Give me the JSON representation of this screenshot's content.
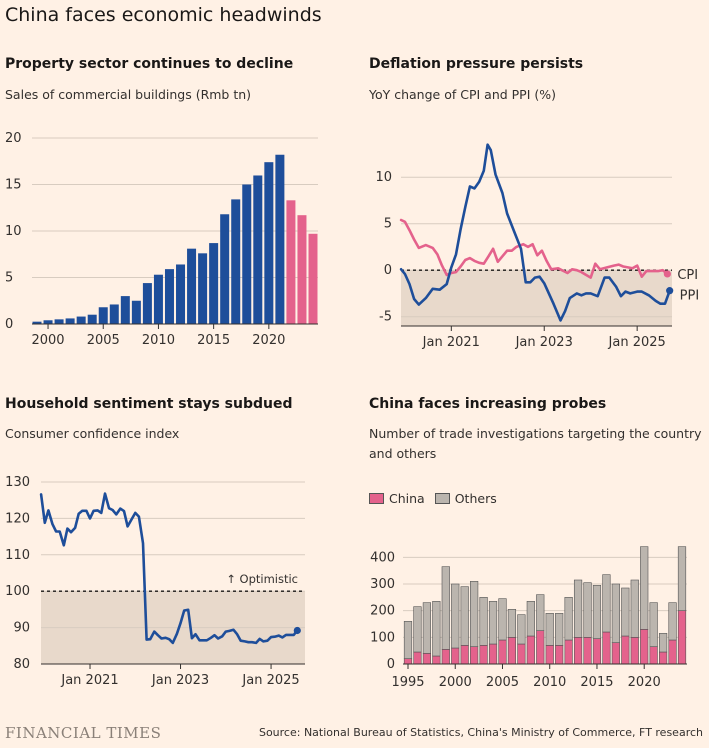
{
  "header": {
    "title": "China faces economic headwinds"
  },
  "footer": {
    "brand": "FINANCIAL TIMES",
    "source": "Source: National Bureau of Statistics, China's Ministry of Commerce, FT research"
  },
  "colors": {
    "blue": "#1e4e9a",
    "pink": "#e4628c",
    "grey": "#bbb5ae",
    "band": "#e8d9cb"
  },
  "chart_data": [
    {
      "id": "property",
      "type": "bar",
      "title": "Property sector continues to decline",
      "subtitle": "Sales of commercial buildings (Rmb tn)",
      "x": [
        1999,
        2000,
        2001,
        2002,
        2003,
        2004,
        2005,
        2006,
        2007,
        2008,
        2009,
        2010,
        2011,
        2012,
        2013,
        2014,
        2015,
        2016,
        2017,
        2018,
        2019,
        2020,
        2021,
        2022,
        2023,
        2024
      ],
      "values": [
        0.25,
        0.4,
        0.5,
        0.6,
        0.8,
        1.0,
        1.8,
        2.1,
        3.0,
        2.5,
        4.4,
        5.3,
        5.9,
        6.4,
        8.1,
        7.6,
        8.7,
        11.8,
        13.4,
        15.0,
        15.97,
        17.4,
        18.2,
        13.3,
        11.7,
        9.7
      ],
      "highlight_from": 2022,
      "ylim": [
        0,
        20
      ],
      "yticks": [
        0,
        5,
        10,
        15,
        20
      ],
      "xticks": [
        2000,
        2005,
        2010,
        2015,
        2020
      ]
    },
    {
      "id": "deflation",
      "type": "line",
      "title": "Deflation pressure persists",
      "subtitle": "YoY change of CPI and PPI (%)",
      "ylim": [
        -6,
        14
      ],
      "yticks": [
        10,
        5,
        0,
        -5
      ],
      "xtick_labels": [
        "Jan 2021",
        "Jan 2023",
        "Jan 2025"
      ],
      "xtick_pos": [
        2021,
        2023,
        2025
      ],
      "xlim": [
        2019.917,
        2025.75
      ],
      "series": [
        {
          "name": "CPI",
          "points": [
            [
              2019.92,
              5.4
            ],
            [
              2020.0,
              5.2
            ],
            [
              2020.1,
              4.3
            ],
            [
              2020.2,
              3.3
            ],
            [
              2020.3,
              2.4
            ],
            [
              2020.45,
              2.7
            ],
            [
              2020.6,
              2.4
            ],
            [
              2020.7,
              1.7
            ],
            [
              2020.8,
              0.5
            ],
            [
              2020.9,
              -0.5
            ],
            [
              2021.0,
              -0.3
            ],
            [
              2021.1,
              -0.2
            ],
            [
              2021.2,
              0.4
            ],
            [
              2021.3,
              1.1
            ],
            [
              2021.4,
              1.3
            ],
            [
              2021.5,
              1.0
            ],
            [
              2021.6,
              0.8
            ],
            [
              2021.7,
              0.7
            ],
            [
              2021.8,
              1.5
            ],
            [
              2021.9,
              2.3
            ],
            [
              2022.0,
              0.9
            ],
            [
              2022.1,
              1.5
            ],
            [
              2022.2,
              2.1
            ],
            [
              2022.3,
              2.1
            ],
            [
              2022.4,
              2.5
            ],
            [
              2022.55,
              2.8
            ],
            [
              2022.65,
              2.5
            ],
            [
              2022.75,
              2.8
            ],
            [
              2022.85,
              1.6
            ],
            [
              2022.95,
              2.1
            ],
            [
              2023.05,
              1.0
            ],
            [
              2023.15,
              0.1
            ],
            [
              2023.3,
              0.2
            ],
            [
              2023.5,
              -0.3
            ],
            [
              2023.6,
              0.1
            ],
            [
              2023.7,
              0.0
            ],
            [
              2023.8,
              -0.2
            ],
            [
              2023.9,
              -0.5
            ],
            [
              2024.0,
              -0.8
            ],
            [
              2024.1,
              0.7
            ],
            [
              2024.2,
              0.1
            ],
            [
              2024.35,
              0.3
            ],
            [
              2024.5,
              0.5
            ],
            [
              2024.6,
              0.6
            ],
            [
              2024.7,
              0.4
            ],
            [
              2024.8,
              0.3
            ],
            [
              2024.9,
              0.2
            ],
            [
              2025.0,
              0.5
            ],
            [
              2025.1,
              -0.7
            ],
            [
              2025.2,
              -0.1
            ],
            [
              2025.3,
              -0.1
            ],
            [
              2025.45,
              -0.1
            ],
            [
              2025.55,
              0.0
            ],
            [
              2025.65,
              -0.4
            ]
          ]
        },
        {
          "name": "PPI",
          "points": [
            [
              2019.92,
              0.1
            ],
            [
              2020.0,
              -0.4
            ],
            [
              2020.1,
              -1.5
            ],
            [
              2020.2,
              -3.1
            ],
            [
              2020.3,
              -3.7
            ],
            [
              2020.45,
              -3.0
            ],
            [
              2020.6,
              -2.0
            ],
            [
              2020.75,
              -2.1
            ],
            [
              2020.9,
              -1.5
            ],
            [
              2021.0,
              0.3
            ],
            [
              2021.1,
              1.7
            ],
            [
              2021.2,
              4.4
            ],
            [
              2021.3,
              6.8
            ],
            [
              2021.4,
              9.0
            ],
            [
              2021.5,
              8.8
            ],
            [
              2021.6,
              9.5
            ],
            [
              2021.7,
              10.7
            ],
            [
              2021.78,
              13.5
            ],
            [
              2021.85,
              12.9
            ],
            [
              2021.95,
              10.3
            ],
            [
              2022.1,
              8.3
            ],
            [
              2022.2,
              6.1
            ],
            [
              2022.35,
              4.2
            ],
            [
              2022.5,
              2.3
            ],
            [
              2022.6,
              -1.3
            ],
            [
              2022.7,
              -1.3
            ],
            [
              2022.8,
              -0.8
            ],
            [
              2022.9,
              -0.7
            ],
            [
              2023.0,
              -1.4
            ],
            [
              2023.2,
              -3.6
            ],
            [
              2023.35,
              -5.4
            ],
            [
              2023.45,
              -4.4
            ],
            [
              2023.55,
              -3.0
            ],
            [
              2023.7,
              -2.5
            ],
            [
              2023.8,
              -2.7
            ],
            [
              2023.9,
              -2.5
            ],
            [
              2024.0,
              -2.5
            ],
            [
              2024.15,
              -2.8
            ],
            [
              2024.3,
              -0.8
            ],
            [
              2024.4,
              -0.8
            ],
            [
              2024.55,
              -1.8
            ],
            [
              2024.65,
              -2.8
            ],
            [
              2024.75,
              -2.3
            ],
            [
              2024.85,
              -2.5
            ],
            [
              2025.0,
              -2.3
            ],
            [
              2025.1,
              -2.3
            ],
            [
              2025.25,
              -2.7
            ],
            [
              2025.4,
              -3.3
            ],
            [
              2025.5,
              -3.6
            ],
            [
              2025.6,
              -3.6
            ],
            [
              2025.7,
              -2.2
            ]
          ]
        }
      ]
    },
    {
      "id": "sentiment",
      "type": "line",
      "title": "Household sentiment stays subdued",
      "subtitle": "Consumer confidence index",
      "ylim": [
        80,
        130
      ],
      "yticks": [
        130,
        120,
        110,
        100,
        90,
        80
      ],
      "xtick_labels": [
        "Jan 2021",
        "Jan 2023",
        "Jan 2025"
      ],
      "xtick_pos": [
        2021,
        2023,
        2025
      ],
      "xlim": [
        2019.917,
        2025.75
      ],
      "reference": {
        "value": 100,
        "label": "↑ Optimistic"
      },
      "series": [
        {
          "name": "Consumer confidence",
          "points": [
            [
              2019.92,
              126.6
            ],
            [
              2020.0,
              118.8
            ],
            [
              2020.08,
              122.2
            ],
            [
              2020.17,
              118.4
            ],
            [
              2020.25,
              116.4
            ],
            [
              2020.33,
              116.4
            ],
            [
              2020.42,
              112.6
            ],
            [
              2020.5,
              117.2
            ],
            [
              2020.58,
              116.2
            ],
            [
              2020.67,
              117.4
            ],
            [
              2020.75,
              121.3
            ],
            [
              2020.83,
              122.1
            ],
            [
              2020.92,
              122.1
            ],
            [
              2021.0,
              120.0
            ],
            [
              2021.08,
              122.1
            ],
            [
              2021.17,
              122.2
            ],
            [
              2021.25,
              121.5
            ],
            [
              2021.33,
              126.8
            ],
            [
              2021.42,
              122.8
            ],
            [
              2021.5,
              122.3
            ],
            [
              2021.58,
              121.1
            ],
            [
              2021.67,
              122.7
            ],
            [
              2021.75,
              122.0
            ],
            [
              2021.83,
              117.8
            ],
            [
              2021.92,
              119.8
            ],
            [
              2022.0,
              121.5
            ],
            [
              2022.08,
              120.5
            ],
            [
              2022.17,
              113.2
            ],
            [
              2022.25,
              86.7
            ],
            [
              2022.33,
              86.8
            ],
            [
              2022.42,
              88.9
            ],
            [
              2022.5,
              87.9
            ],
            [
              2022.58,
              87.0
            ],
            [
              2022.67,
              87.2
            ],
            [
              2022.75,
              86.8
            ],
            [
              2022.83,
              85.8
            ],
            [
              2022.92,
              88.3
            ],
            [
              2023.0,
              91.2
            ],
            [
              2023.08,
              94.7
            ],
            [
              2023.17,
              94.9
            ],
            [
              2023.25,
              87.1
            ],
            [
              2023.33,
              88.2
            ],
            [
              2023.42,
              86.5
            ],
            [
              2023.5,
              86.5
            ],
            [
              2023.58,
              86.5
            ],
            [
              2023.67,
              87.2
            ],
            [
              2023.75,
              87.9
            ],
            [
              2023.83,
              87.0
            ],
            [
              2023.92,
              87.6
            ],
            [
              2024.0,
              88.9
            ],
            [
              2024.08,
              89.1
            ],
            [
              2024.17,
              89.4
            ],
            [
              2024.25,
              88.2
            ],
            [
              2024.33,
              86.4
            ],
            [
              2024.42,
              86.2
            ],
            [
              2024.5,
              86.0
            ],
            [
              2024.58,
              86.0
            ],
            [
              2024.67,
              85.8
            ],
            [
              2024.75,
              86.9
            ],
            [
              2024.83,
              86.2
            ],
            [
              2024.92,
              86.4
            ],
            [
              2025.0,
              87.4
            ],
            [
              2025.08,
              87.5
            ],
            [
              2025.17,
              87.8
            ],
            [
              2025.25,
              87.3
            ],
            [
              2025.33,
              88.0
            ],
            [
              2025.42,
              88.0
            ],
            [
              2025.5,
              88.0
            ],
            [
              2025.58,
              89.2
            ]
          ]
        }
      ]
    },
    {
      "id": "probes",
      "type": "bar",
      "stacked": true,
      "title": "China faces increasing probes",
      "subtitle": "Number of trade investigations targeting the country and others",
      "legend": [
        "China",
        "Others"
      ],
      "ylim": [
        0,
        450
      ],
      "yticks": [
        0,
        100,
        200,
        300,
        400
      ],
      "xticks": [
        1995,
        2000,
        2005,
        2010,
        2015,
        2020
      ],
      "x": [
        1995,
        1996,
        1997,
        1998,
        1999,
        2000,
        2001,
        2002,
        2003,
        2004,
        2005,
        2006,
        2007,
        2008,
        2009,
        2010,
        2011,
        2012,
        2013,
        2014,
        2015,
        2016,
        2017,
        2018,
        2019,
        2020,
        2021,
        2022,
        2023,
        2024
      ],
      "series": [
        {
          "name": "China",
          "values": [
            20,
            45,
            40,
            30,
            55,
            60,
            70,
            65,
            70,
            75,
            90,
            100,
            75,
            105,
            125,
            70,
            70,
            90,
            100,
            100,
            95,
            120,
            80,
            105,
            100,
            130,
            65,
            45,
            90,
            200
          ]
        },
        {
          "name": "Others",
          "values": [
            140,
            170,
            190,
            205,
            310,
            240,
            220,
            245,
            180,
            160,
            155,
            105,
            110,
            130,
            135,
            120,
            120,
            160,
            215,
            205,
            200,
            215,
            220,
            180,
            215,
            310,
            165,
            70,
            140,
            240
          ]
        }
      ]
    }
  ]
}
